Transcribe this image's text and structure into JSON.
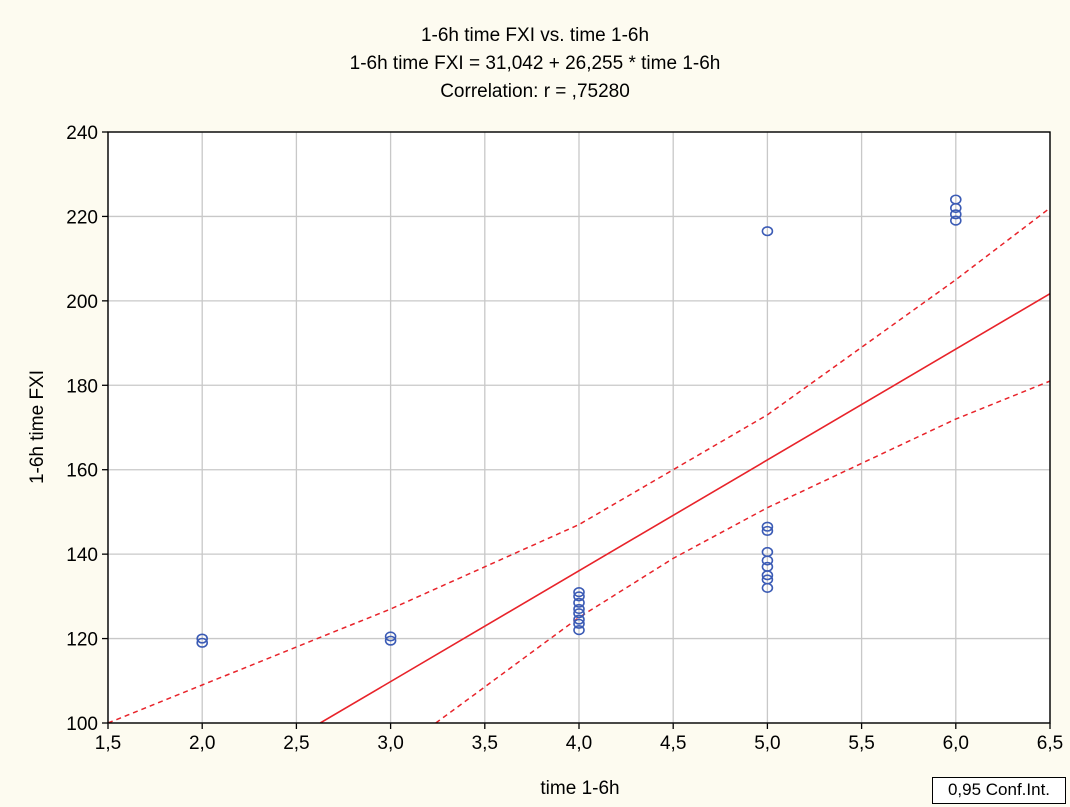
{
  "chart_data": {
    "type": "scatter",
    "title": "1-6h time FXI vs. time 1-6h",
    "subtitle": "1-6h time FXI = 31,042 + 26,255 * time 1-6h",
    "correlation_text": "Correlation: r =  ,75280",
    "xlabel": "time 1-6h",
    "ylabel": "1-6h time FXI",
    "xlim": [
      1.5,
      6.5
    ],
    "ylim": [
      100,
      240
    ],
    "x_ticks": [
      1.5,
      2.0,
      2.5,
      3.0,
      3.5,
      4.0,
      4.5,
      5.0,
      5.5,
      6.0,
      6.5
    ],
    "x_tick_labels": [
      "1,5",
      "2,0",
      "2,5",
      "3,0",
      "3,5",
      "4,0",
      "4,5",
      "5,0",
      "5,5",
      "6,0",
      "6,5"
    ],
    "y_ticks": [
      100,
      120,
      140,
      160,
      180,
      200,
      220,
      240
    ],
    "y_tick_labels": [
      "100",
      "120",
      "140",
      "160",
      "180",
      "200",
      "220",
      "240"
    ],
    "grid": true,
    "points": [
      {
        "x": 2.0,
        "y": 120.0
      },
      {
        "x": 2.0,
        "y": 119.0
      },
      {
        "x": 3.0,
        "y": 120.5
      },
      {
        "x": 3.0,
        "y": 119.5
      },
      {
        "x": 4.0,
        "y": 131.0
      },
      {
        "x": 4.0,
        "y": 130.0
      },
      {
        "x": 4.0,
        "y": 128.5
      },
      {
        "x": 4.0,
        "y": 127.0
      },
      {
        "x": 4.0,
        "y": 126.0
      },
      {
        "x": 4.0,
        "y": 124.5
      },
      {
        "x": 4.0,
        "y": 123.5
      },
      {
        "x": 4.0,
        "y": 122.0
      },
      {
        "x": 5.0,
        "y": 216.5
      },
      {
        "x": 5.0,
        "y": 146.5
      },
      {
        "x": 5.0,
        "y": 145.5
      },
      {
        "x": 5.0,
        "y": 140.5
      },
      {
        "x": 5.0,
        "y": 138.5
      },
      {
        "x": 5.0,
        "y": 137.0
      },
      {
        "x": 5.0,
        "y": 135.0
      },
      {
        "x": 5.0,
        "y": 134.0
      },
      {
        "x": 5.0,
        "y": 132.0
      },
      {
        "x": 6.0,
        "y": 224.0
      },
      {
        "x": 6.0,
        "y": 222.0
      },
      {
        "x": 6.0,
        "y": 220.5
      },
      {
        "x": 6.0,
        "y": 219.0
      }
    ],
    "regression": {
      "intercept": 31.042,
      "slope": 26.255
    },
    "confidence_band": {
      "upper": [
        [
          1.5,
          100.0
        ],
        [
          2.0,
          109.0
        ],
        [
          3.0,
          127.0
        ],
        [
          4.0,
          147.0
        ],
        [
          5.0,
          173.0
        ],
        [
          6.0,
          205.0
        ],
        [
          6.5,
          222.0
        ]
      ],
      "lower": [
        [
          3.24,
          100.0
        ],
        [
          4.0,
          125.0
        ],
        [
          4.5,
          139.0
        ],
        [
          5.0,
          151.0
        ],
        [
          6.0,
          172.0
        ],
        [
          6.5,
          181.0
        ]
      ]
    },
    "legend_label": "0,95 Conf.Int.",
    "colors": {
      "background": "#fdfbf0",
      "plot_background": "#ffffff",
      "grid": "#c8c8c8",
      "points": "#3b5bb5",
      "regression_line": "#e8232a",
      "confidence_band": "#e8232a"
    }
  }
}
